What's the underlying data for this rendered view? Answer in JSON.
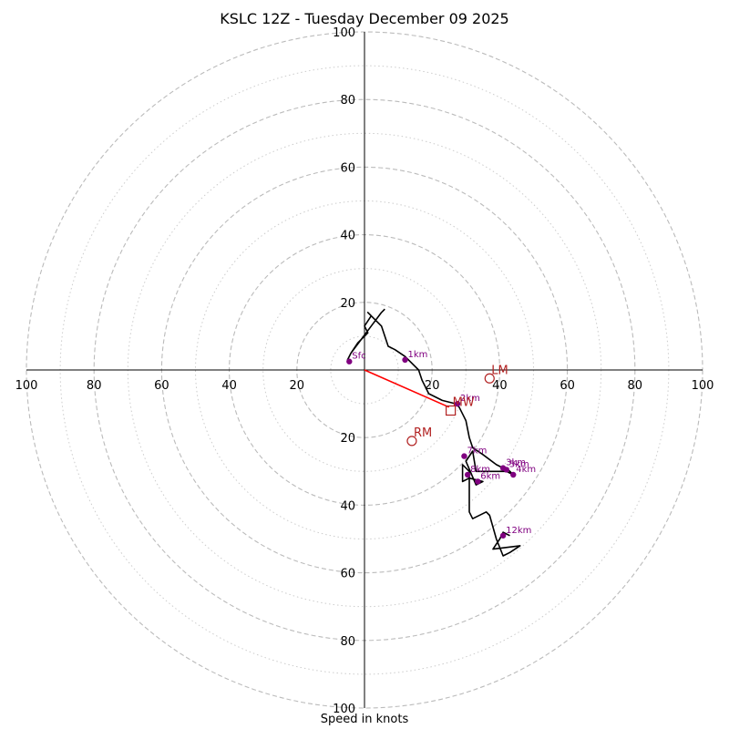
{
  "chart_data": {
    "type": "hodograph",
    "title": "KSLC 12Z - Tuesday December 09 2025",
    "xlabel": "Speed in knots",
    "range": [
      -100,
      100
    ],
    "ring_major": [
      20,
      40,
      60,
      80,
      100
    ],
    "ring_minor": [
      10,
      30,
      50,
      70,
      90
    ],
    "tick_labels": {
      "left": [
        "100",
        "80",
        "60",
        "40",
        "20"
      ],
      "right": [
        "20",
        "40",
        "60",
        "80",
        "100"
      ],
      "top": [
        "100",
        "80",
        "60",
        "40",
        "20"
      ],
      "bottom": [
        "20",
        "40",
        "60",
        "80",
        "100"
      ]
    },
    "trace": [
      [
        6,
        18
      ],
      [
        5,
        17
      ],
      [
        2,
        13
      ],
      [
        -1,
        9
      ],
      [
        -4,
        5
      ],
      [
        -5,
        3
      ],
      [
        -4,
        5
      ],
      [
        -2,
        8
      ],
      [
        1,
        11
      ],
      [
        0,
        13
      ],
      [
        2,
        16
      ],
      [
        1,
        17
      ],
      [
        5,
        13
      ],
      [
        7,
        7
      ],
      [
        9,
        6
      ],
      [
        12,
        4
      ],
      [
        16,
        0
      ],
      [
        17,
        -3
      ],
      [
        19,
        -7
      ],
      [
        23,
        -9
      ],
      [
        27,
        -10
      ],
      [
        28,
        -11
      ],
      [
        30,
        -15
      ],
      [
        31,
        -20
      ],
      [
        32,
        -23
      ],
      [
        35,
        -25
      ],
      [
        39,
        -28
      ],
      [
        41,
        -29
      ],
      [
        42,
        -29
      ],
      [
        44,
        -31
      ],
      [
        42,
        -30
      ],
      [
        33,
        -30
      ],
      [
        32,
        -24
      ],
      [
        30,
        -27
      ],
      [
        33,
        -34
      ],
      [
        35,
        -33
      ],
      [
        31,
        -32
      ],
      [
        29,
        -33
      ],
      [
        29,
        -28
      ],
      [
        31,
        -30
      ],
      [
        31,
        -42
      ],
      [
        32,
        -44
      ],
      [
        36,
        -42
      ],
      [
        37,
        -43
      ],
      [
        39,
        -50
      ],
      [
        41,
        -55
      ],
      [
        43,
        -54
      ],
      [
        46,
        -52
      ],
      [
        38,
        -53
      ],
      [
        40,
        -50
      ],
      [
        41,
        -48
      ],
      [
        43,
        -49
      ]
    ],
    "height_markers": [
      {
        "label": "Sfc",
        "u": -4.5,
        "v": 2.5
      },
      {
        "label": "1km",
        "u": 12,
        "v": 3
      },
      {
        "label": "2km",
        "u": 27.5,
        "v": -10
      },
      {
        "label": "3km",
        "u": 41,
        "v": -29
      },
      {
        "label": "4km",
        "u": 44,
        "v": -31
      },
      {
        "label": "5km",
        "u": 42,
        "v": -29.5
      },
      {
        "label": "6km",
        "u": 33.5,
        "v": -33
      },
      {
        "label": "7km",
        "u": 29.5,
        "v": -25.5
      },
      {
        "label": "8km",
        "u": 30.5,
        "v": -31
      },
      {
        "label": "12km",
        "u": 41,
        "v": -49
      }
    ],
    "storm_motion": [
      {
        "label": "LM",
        "u": 37,
        "v": -2.5,
        "marker": "circle"
      },
      {
        "label": "RM",
        "u": 14,
        "v": -21,
        "marker": "circle"
      },
      {
        "label": "MW",
        "u": 25.5,
        "v": -12,
        "marker": "square"
      }
    ],
    "shear_vector": {
      "from": [
        0,
        0
      ],
      "to": [
        25,
        -11
      ]
    },
    "colors": {
      "trace": "#000000",
      "markers": "#800080",
      "storm_motion": "#b22222",
      "shear_vector": "#ff0000",
      "grid": "#bbbbbb"
    }
  }
}
